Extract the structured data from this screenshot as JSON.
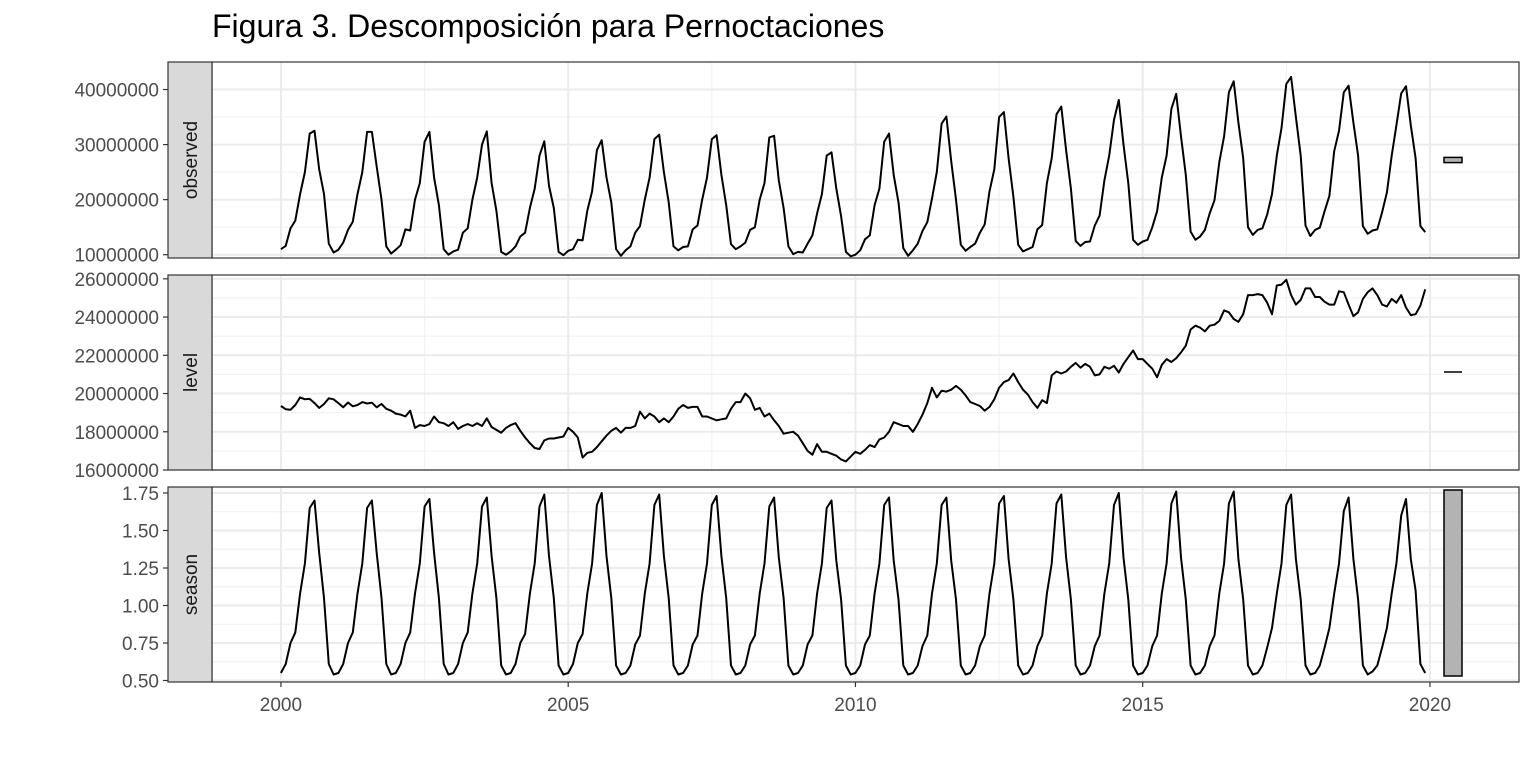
{
  "chart_data": {
    "type": "line",
    "title": "Figura 3. Descomposición para Pernoctaciones",
    "x_ticks": [
      "2000",
      "2005",
      "2010",
      "2015",
      "2020"
    ],
    "xlim": [
      1998.8,
      2021.55
    ],
    "grid": true,
    "legend": "none",
    "line_color": "#000000",
    "panels": [
      {
        "name": "observed",
        "ylim": [
          9400000,
          45000000
        ],
        "y_ticks": [
          "10000000",
          "20000000",
          "30000000",
          "40000000"
        ],
        "series": {
          "start_year": 2000,
          "frequency": 12,
          "values": [
            11000000,
            11600000,
            14800000,
            16200000,
            21000000,
            25000000,
            32000000,
            32500000,
            25500000,
            21000000,
            12000000,
            10400000,
            10900000,
            12200000,
            14500000,
            16000000,
            21000000,
            25000000,
            32300000,
            32300000,
            26000000,
            20000000,
            11500000,
            10200000,
            10900000,
            11700000,
            14600000,
            14400000,
            20000000,
            23000000,
            30500000,
            32300000,
            24000000,
            19000000,
            11000000,
            10000000,
            10600000,
            10900000,
            14000000,
            14800000,
            20000000,
            24000000,
            30000000,
            32400000,
            23000000,
            18000000,
            10500000,
            10000000,
            10600000,
            11500000,
            13300000,
            14000000,
            18500000,
            22000000,
            28000000,
            30600000,
            22500000,
            18500000,
            10500000,
            9900000,
            10700000,
            11000000,
            12700000,
            12600000,
            18000000,
            21500000,
            29000000,
            30800000,
            24000000,
            19500000,
            11000000,
            9800000,
            10800000,
            11500000,
            14000000,
            15200000,
            20000000,
            24000000,
            31000000,
            31800000,
            25000000,
            19500000,
            11500000,
            10800000,
            11400000,
            11500000,
            14600000,
            15300000,
            20000000,
            24000000,
            31000000,
            31700000,
            24500000,
            19000000,
            11900000,
            11000000,
            11500000,
            12200000,
            14500000,
            15000000,
            20000000,
            23000000,
            31300000,
            31600000,
            23500000,
            18500000,
            11500000,
            10100000,
            10500000,
            10400000,
            12000000,
            13500000,
            17500000,
            21000000,
            28000000,
            28600000,
            22000000,
            17000000,
            10500000,
            9700000,
            10000000,
            10800000,
            12800000,
            13500000,
            19000000,
            22000000,
            30500000,
            32000000,
            24500000,
            19500000,
            11200000,
            9800000,
            10800000,
            12000000,
            14300000,
            15900000,
            20200000,
            25000000,
            33800000,
            35100000,
            27000000,
            20000000,
            11800000,
            10700000,
            11400000,
            12000000,
            14000000,
            15500000,
            21500000,
            25500000,
            35000000,
            35900000,
            27500000,
            20500000,
            11800000,
            10600000,
            11000000,
            11400000,
            14600000,
            15400000,
            23000000,
            27500000,
            35500000,
            36900000,
            29000000,
            22000000,
            12500000,
            11600000,
            12300000,
            12400000,
            15300000,
            17100000,
            23500000,
            28000000,
            34500000,
            38100000,
            30000000,
            23000000,
            12700000,
            11800000,
            12400000,
            12700000,
            15000000,
            17900000,
            24000000,
            28000000,
            36500000,
            39200000,
            31500000,
            24500000,
            14200000,
            12700000,
            13300000,
            14500000,
            17500000,
            19900000,
            26800000,
            31500000,
            39500000,
            41500000,
            34000000,
            27500000,
            15000000,
            13600000,
            14500000,
            14800000,
            17300000,
            21000000,
            28000000,
            33000000,
            41000000,
            42300000,
            35000000,
            28000000,
            15300000,
            13400000,
            14500000,
            14900000,
            17900000,
            20700000,
            28800000,
            32500000,
            39500000,
            40700000,
            34000000,
            28000000,
            15200000,
            13800000,
            14400000,
            14600000,
            17700000,
            21300000,
            28000000,
            33500000,
            39300000,
            40600000,
            33500000,
            27500000,
            15200000,
            14100000
          ]
        }
      },
      {
        "name": "level",
        "ylim": [
          16000000,
          26200000
        ],
        "y_ticks": [
          "16000000",
          "18000000",
          "20000000",
          "22000000",
          "24000000",
          "26000000"
        ],
        "series": {
          "start_year": 2000,
          "frequency": 12,
          "values": [
            19350000,
            19180000,
            19150000,
            19400000,
            19800000,
            19700000,
            19720000,
            19500000,
            19250000,
            19450000,
            19750000,
            19700000,
            19500000,
            19280000,
            19530000,
            19330000,
            19400000,
            19550000,
            19480000,
            19520000,
            19280000,
            19460000,
            19200000,
            19100000,
            18950000,
            18900000,
            18800000,
            19100000,
            18200000,
            18350000,
            18300000,
            18400000,
            18800000,
            18500000,
            18450000,
            18300000,
            18500000,
            18150000,
            18300000,
            18400000,
            18300000,
            18450000,
            18300000,
            18700000,
            18250000,
            18100000,
            17950000,
            18200000,
            18350000,
            18450000,
            18050000,
            17700000,
            17400000,
            17150000,
            17100000,
            17550000,
            17650000,
            17650000,
            17700000,
            17750000,
            18200000,
            18000000,
            17700000,
            16650000,
            16900000,
            16950000,
            17200000,
            17500000,
            17800000,
            18050000,
            18200000,
            17950000,
            18200000,
            18200000,
            18300000,
            19050000,
            18700000,
            18950000,
            18800000,
            18500000,
            18700000,
            18500000,
            18800000,
            19200000,
            19400000,
            19250000,
            19300000,
            19300000,
            18800000,
            18800000,
            18700000,
            18600000,
            18650000,
            18700000,
            19200000,
            19550000,
            19550000,
            20000000,
            19750000,
            19150000,
            19250000,
            18800000,
            18950000,
            18600000,
            18300000,
            17900000,
            17950000,
            18000000,
            17800000,
            17400000,
            17000000,
            16800000,
            17350000,
            16950000,
            16950000,
            16850000,
            16750000,
            16550000,
            16450000,
            16700000,
            16950000,
            16850000,
            17050000,
            17300000,
            17200000,
            17600000,
            17700000,
            18000000,
            18500000,
            18400000,
            18300000,
            18300000,
            18000000,
            18400000,
            18900000,
            19500000,
            20300000,
            19800000,
            20150000,
            20100000,
            20200000,
            20400000,
            20200000,
            19900000,
            19550000,
            19450000,
            19350000,
            19100000,
            19300000,
            19700000,
            20300000,
            20600000,
            20700000,
            21050000,
            20600000,
            20200000,
            19950000,
            19550000,
            19250000,
            19650000,
            19500000,
            20950000,
            21150000,
            21050000,
            21150000,
            21400000,
            21600000,
            21350000,
            21550000,
            21400000,
            20950000,
            21000000,
            21400000,
            21300000,
            21450000,
            21100000,
            21550000,
            21900000,
            22250000,
            21800000,
            21800000,
            21550000,
            21300000,
            20850000,
            21500000,
            21800000,
            21650000,
            21850000,
            22150000,
            22500000,
            23350000,
            23550000,
            23450000,
            23250000,
            23550000,
            23600000,
            23800000,
            24350000,
            24250000,
            23900000,
            23750000,
            24150000,
            25150000,
            25150000,
            25200000,
            25150000,
            24750000,
            24150000,
            25650000,
            25700000,
            25950000,
            25150000,
            24650000,
            24900000,
            25500000,
            25500000,
            25050000,
            25050000,
            24800000,
            24650000,
            24650000,
            25350000,
            25300000,
            24650000,
            24050000,
            24250000,
            24950000,
            25300000,
            25500000,
            25150000,
            24650000,
            24550000,
            24950000,
            24750000,
            25150000,
            24500000,
            24100000,
            24150000,
            24600000,
            25450000
          ]
        }
      },
      {
        "name": "season",
        "ylim": [
          0.49,
          1.79
        ],
        "y_ticks": [
          "0.50",
          "0.75",
          "1.00",
          "1.25",
          "1.50",
          "1.75"
        ],
        "series": {
          "start_year": 2000,
          "frequency": 12,
          "values": [
            0.55,
            0.61,
            0.75,
            0.82,
            1.08,
            1.28,
            1.65,
            1.7,
            1.35,
            1.05,
            0.61,
            0.54,
            0.55,
            0.61,
            0.75,
            0.82,
            1.08,
            1.28,
            1.65,
            1.7,
            1.35,
            1.05,
            0.61,
            0.54,
            0.55,
            0.61,
            0.75,
            0.82,
            1.08,
            1.28,
            1.66,
            1.71,
            1.35,
            1.05,
            0.61,
            0.54,
            0.55,
            0.61,
            0.75,
            0.82,
            1.08,
            1.28,
            1.66,
            1.72,
            1.33,
            1.05,
            0.6,
            0.54,
            0.55,
            0.61,
            0.75,
            0.81,
            1.08,
            1.28,
            1.66,
            1.74,
            1.33,
            1.05,
            0.6,
            0.54,
            0.55,
            0.61,
            0.75,
            0.81,
            1.08,
            1.28,
            1.67,
            1.75,
            1.33,
            1.05,
            0.6,
            0.54,
            0.55,
            0.6,
            0.74,
            0.8,
            1.08,
            1.28,
            1.67,
            1.74,
            1.33,
            1.05,
            0.6,
            0.54,
            0.55,
            0.6,
            0.74,
            0.8,
            1.08,
            1.28,
            1.67,
            1.73,
            1.33,
            1.05,
            0.6,
            0.54,
            0.55,
            0.6,
            0.74,
            0.8,
            1.08,
            1.28,
            1.66,
            1.72,
            1.32,
            1.05,
            0.6,
            0.54,
            0.55,
            0.6,
            0.74,
            0.8,
            1.08,
            1.28,
            1.65,
            1.7,
            1.3,
            1.04,
            0.6,
            0.54,
            0.55,
            0.6,
            0.74,
            0.8,
            1.08,
            1.28,
            1.67,
            1.72,
            1.3,
            1.04,
            0.6,
            0.54,
            0.55,
            0.6,
            0.73,
            0.8,
            1.08,
            1.28,
            1.67,
            1.72,
            1.3,
            1.04,
            0.6,
            0.54,
            0.55,
            0.6,
            0.73,
            0.8,
            1.08,
            1.28,
            1.68,
            1.73,
            1.31,
            1.04,
            0.6,
            0.54,
            0.55,
            0.6,
            0.73,
            0.8,
            1.08,
            1.28,
            1.68,
            1.74,
            1.32,
            1.04,
            0.6,
            0.54,
            0.55,
            0.6,
            0.73,
            0.8,
            1.08,
            1.28,
            1.67,
            1.75,
            1.32,
            1.04,
            0.6,
            0.54,
            0.55,
            0.6,
            0.73,
            0.8,
            1.08,
            1.28,
            1.68,
            1.76,
            1.32,
            1.04,
            0.6,
            0.54,
            0.55,
            0.6,
            0.73,
            0.8,
            1.08,
            1.28,
            1.68,
            1.76,
            1.31,
            1.04,
            0.6,
            0.54,
            0.55,
            0.6,
            0.72,
            0.85,
            1.08,
            1.28,
            1.67,
            1.74,
            1.31,
            1.04,
            0.6,
            0.54,
            0.55,
            0.6,
            0.72,
            0.85,
            1.08,
            1.28,
            1.63,
            1.72,
            1.31,
            1.04,
            0.6,
            0.54,
            0.56,
            0.6,
            0.72,
            0.85,
            1.08,
            1.28,
            1.6,
            1.71,
            1.31,
            1.1,
            0.61,
            0.55
          ]
        }
      }
    ],
    "scale_bars": [
      {
        "panel": "observed",
        "value_range": 940000
      },
      {
        "panel": "level",
        "value_range": 95000
      },
      {
        "panel": "season",
        "value_range": 1.24,
        "fill": "#b3b3b3"
      }
    ]
  }
}
